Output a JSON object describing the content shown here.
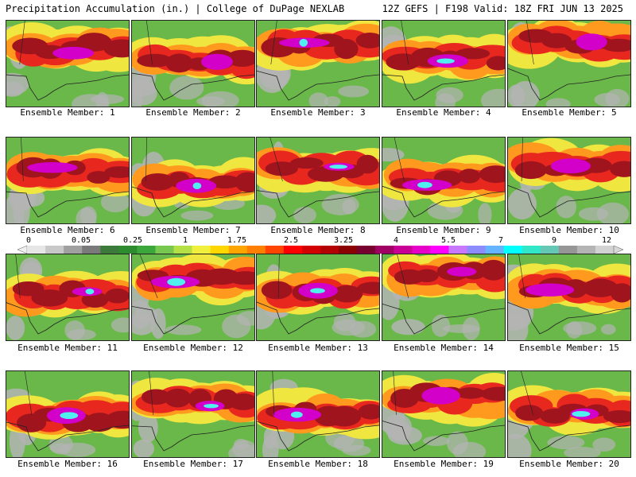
{
  "header": {
    "left": "Precipitation Accumulation (in.) | College of DuPage NEXLAB",
    "right": "12Z GEFS | F198 Valid: 18Z FRI JUN 13 2025"
  },
  "members": [
    {
      "label": "Ensemble Member: 1"
    },
    {
      "label": "Ensemble Member: 2"
    },
    {
      "label": "Ensemble Member: 3"
    },
    {
      "label": "Ensemble Member: 4"
    },
    {
      "label": "Ensemble Member: 5"
    },
    {
      "label": "Ensemble Member: 6"
    },
    {
      "label": "Ensemble Member: 7"
    },
    {
      "label": "Ensemble Member: 8"
    },
    {
      "label": "Ensemble Member: 9"
    },
    {
      "label": "Ensemble Member: 10"
    },
    {
      "label": "Ensemble Member: 11"
    },
    {
      "label": "Ensemble Member: 12"
    },
    {
      "label": "Ensemble Member: 13"
    },
    {
      "label": "Ensemble Member: 14"
    },
    {
      "label": "Ensemble Member: 15"
    },
    {
      "label": "Ensemble Member: 16"
    },
    {
      "label": "Ensemble Member: 17"
    },
    {
      "label": "Ensemble Member: 18"
    },
    {
      "label": "Ensemble Member: 19"
    },
    {
      "label": "Ensemble Member: 20"
    }
  ],
  "colorbar": {
    "labels": [
      "0",
      "0.05",
      "0.25",
      "1",
      "1.75",
      "2.5",
      "3.25",
      "4",
      "5.5",
      "7",
      "9",
      "12"
    ],
    "colors": [
      "#e6e6e6",
      "#c8c8c8",
      "#a0a0a0",
      "#7a7a7a",
      "#3c7a3c",
      "#2e8b2e",
      "#3ca83c",
      "#78c850",
      "#b4e046",
      "#f0f03c",
      "#ffd700",
      "#ffa500",
      "#ff7f00",
      "#ff4500",
      "#ff0000",
      "#d20000",
      "#b40000",
      "#8b0000",
      "#780030",
      "#a00064",
      "#c80096",
      "#e600c8",
      "#ff00ff",
      "#c878ff",
      "#8c8cff",
      "#64b4ff",
      "#00ffff",
      "#32e6c8",
      "#64c8b4",
      "#969696",
      "#b4b4b4",
      "#d2d2d2"
    ],
    "palette": {
      "ocean": "#3c9a2e",
      "land_low": "#b4b4b4",
      "land_mid": "#6ab84a",
      "yellow": "#f0e640",
      "orange": "#ff9a1e",
      "red": "#e8281e",
      "darkred": "#a0141e",
      "magenta": "#d200c8",
      "cyan": "#50f0f0"
    }
  }
}
